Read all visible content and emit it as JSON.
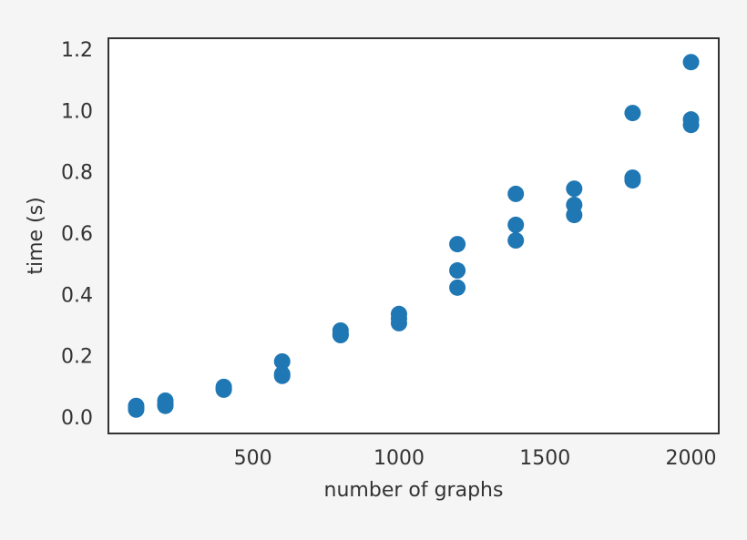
{
  "chart_data": {
    "type": "scatter",
    "x_label": "number of graphs",
    "y_label": "time (s)",
    "series": [
      {
        "color": "#1f77b4",
        "x": [
          100,
          100,
          100,
          200,
          200,
          200,
          400,
          400,
          400,
          600,
          600,
          600,
          800,
          800,
          800,
          1000,
          1000,
          1000,
          1200,
          1200,
          1200,
          1400,
          1400,
          1400,
          1600,
          1600,
          1600,
          1800,
          1800,
          1800,
          2000,
          2000,
          2000
        ],
        "values": [
          0.042,
          0.03,
          0.036,
          0.059,
          0.048,
          0.042,
          0.104,
          0.095,
          0.098,
          0.187,
          0.146,
          0.14,
          0.288,
          0.273,
          0.276,
          0.342,
          0.312,
          0.327,
          0.57,
          0.484,
          0.428,
          0.734,
          0.633,
          0.582,
          0.751,
          0.698,
          0.665,
          0.998,
          0.787,
          0.778,
          1.164,
          0.977,
          0.959
        ]
      }
    ],
    "xlim": [
      5,
      2095
    ],
    "xticks": [
      500,
      1000,
      1500,
      2000
    ],
    "ylim": [
      -0.048,
      1.242
    ],
    "yticks": [
      {
        "value": 0,
        "label": "0.0"
      },
      0.2,
      0.4,
      0.6,
      0.8,
      {
        "value": 1,
        "label": "1.0"
      },
      1.2
    ],
    "grid": false
  }
}
